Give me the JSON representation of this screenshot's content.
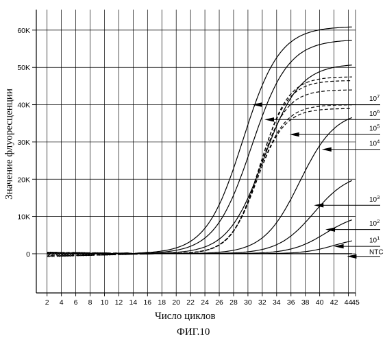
{
  "chart_data": {
    "type": "line",
    "xlabel": "Число циклов",
    "ylabel": "Значение флуоресценции",
    "caption": "ФИГ.10",
    "x_ticks": [
      2,
      4,
      6,
      8,
      10,
      12,
      14,
      16,
      18,
      20,
      22,
      24,
      26,
      28,
      30,
      32,
      34,
      36,
      38,
      40,
      42,
      44,
      45
    ],
    "y_ticks": [
      {
        "value": 0,
        "label": "0"
      },
      {
        "value": 10000,
        "label": "10K"
      },
      {
        "value": 20000,
        "label": "20K"
      },
      {
        "value": 30000,
        "label": "30K"
      },
      {
        "value": 40000,
        "label": "40K"
      },
      {
        "value": 50000,
        "label": "50K"
      },
      {
        "value": 60000,
        "label": "60K"
      }
    ],
    "xlim": [
      0.5,
      45
    ],
    "ylim": [
      -10500,
      65500
    ],
    "grid": true,
    "series": [
      {
        "name": "10^7",
        "style": "solid",
        "plateau": 61000,
        "midpoint": 29.3,
        "slope": 0.39
      },
      {
        "name": "10^7",
        "style": "solid",
        "plateau": 57500,
        "midpoint": 30.5,
        "slope": 0.39
      },
      {
        "name": "10^6",
        "style": "solid",
        "plateau": 51000,
        "midpoint": 32.2,
        "slope": 0.4
      },
      {
        "name": "10^5",
        "style": "dashed",
        "plateau": 47500,
        "midpoint": 31.7,
        "slope": 0.52
      },
      {
        "name": "10^5",
        "style": "dashed",
        "plateau": 46500,
        "midpoint": 31.6,
        "slope": 0.52
      },
      {
        "name": "10^5",
        "style": "dashed",
        "plateau": 44000,
        "midpoint": 31.5,
        "slope": 0.52
      },
      {
        "name": "10^5",
        "style": "dashed",
        "plateau": 40000,
        "midpoint": 31.3,
        "slope": 0.52
      },
      {
        "name": "10^5",
        "style": "dashed",
        "plateau": 39000,
        "midpoint": 31.2,
        "slope": 0.52
      },
      {
        "name": "10^4",
        "style": "solid",
        "plateau": 38500,
        "midpoint": 37.2,
        "slope": 0.4
      },
      {
        "name": "10^3",
        "style": "solid",
        "plateau": 22000,
        "midpoint": 39.2,
        "slope": 0.4
      },
      {
        "name": "10^2",
        "style": "solid",
        "plateau": 11000,
        "midpoint": 40.8,
        "slope": 0.42
      },
      {
        "name": "10^1",
        "style": "solid",
        "plateau": 4500,
        "midpoint": 42.0,
        "slope": 0.48
      },
      {
        "name": "NTC",
        "style": "solid",
        "plateau": 0,
        "midpoint": 40,
        "slope": 0.4
      }
    ],
    "annotations": [
      {
        "base": "10",
        "exp": "7",
        "tip_x": 30.6,
        "tip_y": 40000,
        "line_y": 40000,
        "label_y": 41000
      },
      {
        "base": "10",
        "exp": "6",
        "tip_x": 32.3,
        "tip_y": 36000,
        "line_y": 36000,
        "label_y": 37000
      },
      {
        "base": "10",
        "exp": "5",
        "tip_x": 35.8,
        "tip_y": 32000,
        "line_y": 32000,
        "label_y": 33000
      },
      {
        "base": "10",
        "exp": "4",
        "tip_x": 40.3,
        "tip_y": 28000,
        "line_y": 28000,
        "label_y": 29000
      },
      {
        "base": "10",
        "exp": "3",
        "tip_x": 39.2,
        "tip_y": 13000,
        "line_y": 13000,
        "label_y": 14000
      },
      {
        "base": "10",
        "exp": "2",
        "tip_x": 40.8,
        "tip_y": 6500,
        "line_y": 6500,
        "label_y": 7500
      },
      {
        "base": "10",
        "exp": "1",
        "tip_x": 42.0,
        "tip_y": 2000,
        "line_y": 2000,
        "label_y": 3000
      },
      {
        "base": "NTC",
        "exp": "",
        "tip_x": 43.8,
        "tip_y": -700,
        "line_y": -700,
        "label_y": -100
      }
    ]
  }
}
